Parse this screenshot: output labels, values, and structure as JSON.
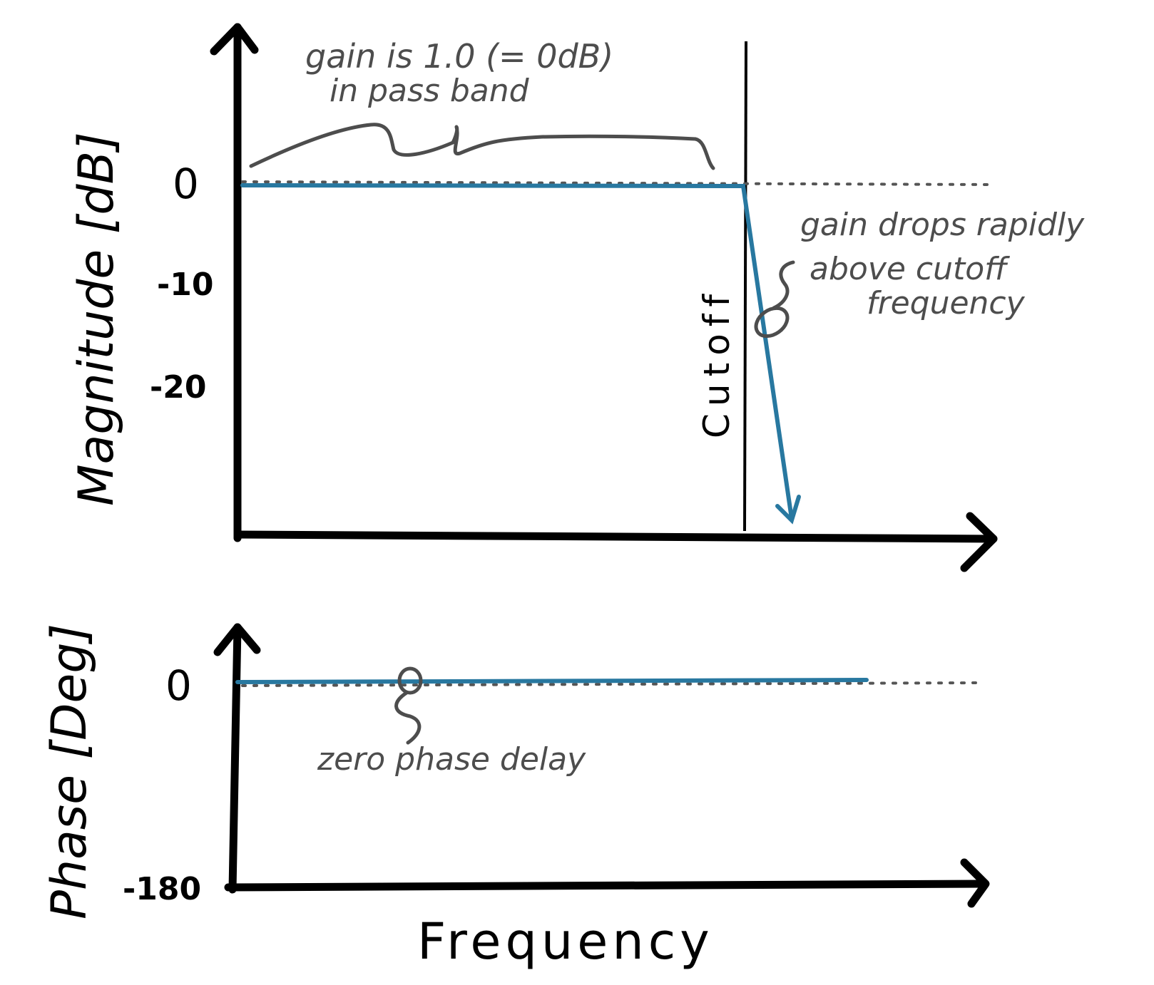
{
  "colors": {
    "axis": "#000000",
    "trace": "#2878a0",
    "annotation": "#4d4d4d"
  },
  "magnitude_plot": {
    "ylabel": "Magnitude [dB]",
    "ticks": [
      "0",
      "-10",
      "-20"
    ],
    "cutoff_label": "Cutoff",
    "annotation_passband_line1": "gain is 1.0 (= 0dB)",
    "annotation_passband_line2": "in pass band",
    "annotation_rolloff_line1": "gain drops rapidly",
    "annotation_rolloff_line2": "above cutoff",
    "annotation_rolloff_line3": "frequency"
  },
  "phase_plot": {
    "ylabel": "Phase [Deg]",
    "ticks": [
      "0",
      "-180"
    ],
    "annotation": "zero phase delay"
  },
  "xlabel": "Frequency",
  "chart_data": [
    {
      "type": "line",
      "ylabel": "Magnitude [dB]",
      "y_ticks": [
        0,
        -10,
        -20
      ],
      "xlabel": "Frequency",
      "series": [
        {
          "points": [
            [
              "0",
              0
            ],
            [
              "cutoff",
              0
            ],
            [
              "above cutoff",
              -32
            ]
          ]
        }
      ],
      "reference_line": 0
    },
    {
      "type": "line",
      "ylabel": "Phase [Deg]",
      "y_ticks": [
        0,
        -180
      ],
      "xlabel": "Frequency",
      "series": [
        {
          "points": [
            [
              "0",
              0
            ],
            [
              "high",
              0
            ]
          ]
        }
      ],
      "reference_line": 0
    }
  ]
}
